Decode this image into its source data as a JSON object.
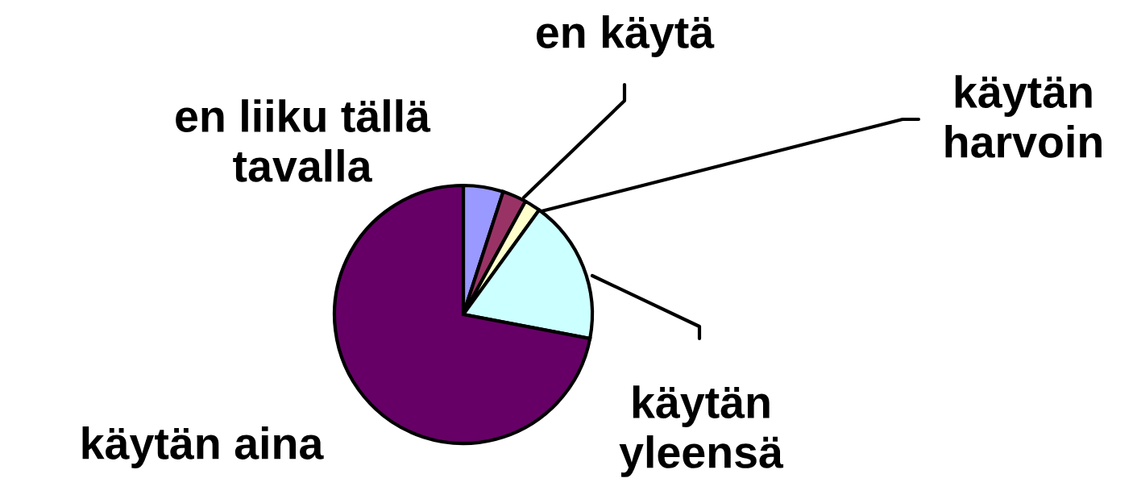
{
  "chart_data": {
    "type": "pie",
    "categories": [
      "en liiku tällä\ntavalla",
      "en käytä",
      "käytän\nharvoin",
      "käytän\nyleensä",
      "käytän aina"
    ],
    "values": [
      5,
      3,
      2,
      18,
      72
    ],
    "colors": [
      "#9999ff",
      "#993366",
      "#ffffcc",
      "#ccffff",
      "#660066"
    ]
  }
}
